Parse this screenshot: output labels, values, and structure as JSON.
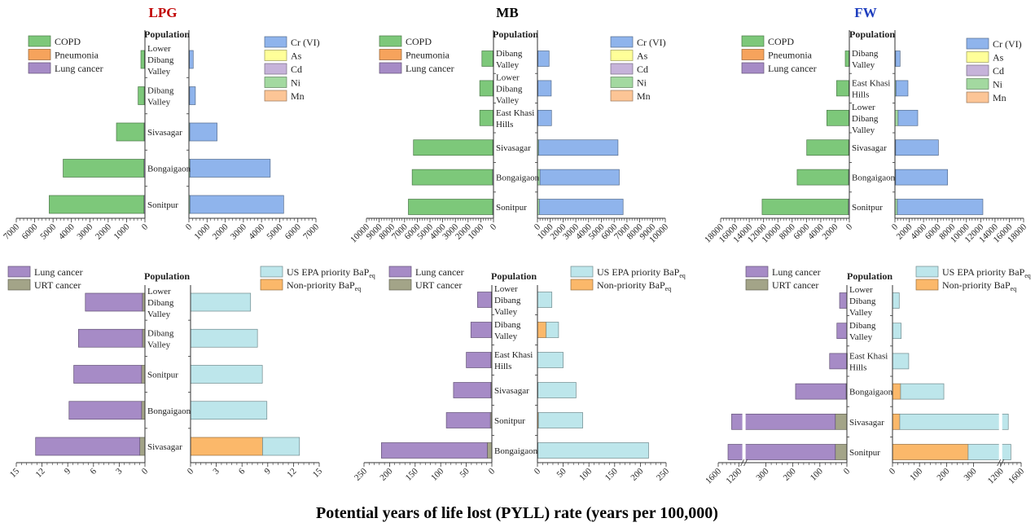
{
  "caption": "Potential years of life lost (PYLL) rate (years per 100,000)",
  "titles": [
    {
      "text": "LPG",
      "color": "#c00000"
    },
    {
      "text": "MB",
      "color": "#000000"
    },
    {
      "text": "FW",
      "color": "#1f3fbf"
    }
  ],
  "colors": {
    "COPD": "#7dc87a",
    "Pneumonia": "#f6a35c",
    "Lung cancer": "#a68bc6",
    "Cr (VI)": "#8fb4ec",
    "As": "#ffff99",
    "Cd": "#c6b3da",
    "Ni": "#a3d9a0",
    "Mn": "#fcc596",
    "URT cancer": "#a3a488",
    "US EPA priority BaPeq": "#bde6eb",
    "Non-priority BaPeq": "#fbb86a"
  },
  "chart_data": [
    {
      "type": "bar",
      "orientation": "horizontal-butterfly",
      "fuel": "LPG",
      "center_label": "Population",
      "categories": [
        "Lower Dibang Valley",
        "Dibang Valley",
        "Sivasagar",
        "Bongaigaon",
        "Sonitpur"
      ],
      "left": {
        "legend": [
          "COPD",
          "Pneumonia",
          "Lung cancer"
        ],
        "series": [
          {
            "name": "Lung cancer",
            "values": [
              30,
              40,
              50,
              60,
              60
            ]
          },
          {
            "name": "Pneumonia",
            "values": [
              0,
              0,
              0,
              0,
              0
            ]
          },
          {
            "name": "COPD",
            "values": [
              190,
              330,
              1500,
              4390,
              5150
            ]
          }
        ],
        "axis": {
          "max": 7000,
          "ticks": [
            0,
            1000,
            2000,
            3000,
            4000,
            5000,
            6000,
            7000
          ]
        }
      },
      "right": {
        "legend": [
          "Cr (VI)",
          "As",
          "Cd",
          "Ni",
          "Mn"
        ],
        "series": [
          {
            "name": "Ni",
            "values": [
              30,
              40,
              50,
              60,
              60
            ]
          },
          {
            "name": "As",
            "values": [
              0,
              0,
              0,
              0,
              0
            ]
          },
          {
            "name": "Cd",
            "values": [
              0,
              0,
              0,
              0,
              0
            ]
          },
          {
            "name": "Mn",
            "values": [
              0,
              0,
              0,
              0,
              0
            ]
          },
          {
            "name": "Cr (VI)",
            "values": [
              207,
              315,
              1500,
              4420,
              5160
            ]
          }
        ],
        "axis": {
          "max": 7000,
          "ticks": [
            0,
            1000,
            2000,
            3000,
            4000,
            5000,
            6000,
            7000
          ]
        }
      }
    },
    {
      "type": "bar",
      "orientation": "horizontal-butterfly",
      "fuel": "MB",
      "center_label": "Population",
      "categories": [
        "Dibang Valley",
        "Lower Dibang Valley",
        "East Khasi Hills",
        "Sivasagar",
        "Bongaigaon",
        "Sonitpur"
      ],
      "left": {
        "legend": [
          "COPD",
          "Pneumonia",
          "Lung cancer"
        ],
        "series": [
          {
            "name": "Lung cancer",
            "values": [
              40,
              40,
              40,
              60,
              80,
              70
            ]
          },
          {
            "name": "Pneumonia",
            "values": [
              0,
              0,
              0,
              0,
              0,
              0
            ]
          },
          {
            "name": "COPD",
            "values": [
              870,
              1040,
              1040,
              6240,
              6320,
              6630
            ]
          }
        ],
        "axis": {
          "max": 10000,
          "ticks": [
            0,
            1000,
            2000,
            3000,
            4000,
            5000,
            6000,
            7000,
            8000,
            9000,
            10000
          ]
        }
      },
      "right": {
        "legend": [
          "Cr (VI)",
          "As",
          "Cd",
          "Ni",
          "Mn"
        ],
        "series": [
          {
            "name": "Ni",
            "values": [
              40,
              40,
              40,
              100,
              200,
              150
            ]
          },
          {
            "name": "As",
            "values": [
              0,
              0,
              0,
              0,
              0,
              0
            ]
          },
          {
            "name": "Cd",
            "values": [
              0,
              0,
              0,
              0,
              0,
              0
            ]
          },
          {
            "name": "Mn",
            "values": [
              0,
              0,
              0,
              0,
              0,
              0
            ]
          },
          {
            "name": "Cr (VI)",
            "values": [
              870,
              1040,
              1060,
              6200,
              6200,
              6550
            ]
          }
        ],
        "axis": {
          "max": 10000,
          "ticks": [
            0,
            1000,
            2000,
            3000,
            4000,
            5000,
            6000,
            7000,
            8000,
            9000,
            10000
          ]
        }
      }
    },
    {
      "type": "bar",
      "orientation": "horizontal-butterfly",
      "fuel": "FW",
      "center_label": "Population",
      "categories": [
        "Dibang Valley",
        "East Khasi Hills",
        "Lower Dibang Valley",
        "Sivasagar",
        "Bongaigaon",
        "Sonitpur"
      ],
      "left": {
        "legend": [
          "COPD",
          "Pneumonia",
          "Lung cancer"
        ],
        "series": [
          {
            "name": "Lung cancer",
            "values": [
              50,
              80,
              80,
              100,
              120,
              150
            ]
          },
          {
            "name": "Pneumonia",
            "values": [
              0,
              0,
              0,
              0,
              0,
              0
            ]
          },
          {
            "name": "COPD",
            "values": [
              520,
              1700,
              3070,
              5860,
              7180,
              12050
            ]
          }
        ],
        "axis": {
          "max": 18000,
          "ticks": [
            0,
            2000,
            4000,
            6000,
            8000,
            10000,
            12000,
            14000,
            16000,
            18000
          ]
        }
      },
      "right": {
        "legend": [
          "Cr (VI)",
          "As",
          "Cd",
          "Ni",
          "Mn"
        ],
        "series": [
          {
            "name": "Ni",
            "values": [
              100,
              150,
              450,
              100,
              100,
              340
            ]
          },
          {
            "name": "As",
            "values": [
              0,
              0,
              0,
              0,
              0,
              0
            ]
          },
          {
            "name": "Cd",
            "values": [
              0,
              0,
              0,
              0,
              0,
              0
            ]
          },
          {
            "name": "Mn",
            "values": [
              0,
              0,
              0,
              0,
              0,
              0
            ]
          },
          {
            "name": "Cr (VI)",
            "values": [
              620,
              1670,
              2740,
              5980,
              7270,
              11960
            ]
          }
        ],
        "axis": {
          "max": 18000,
          "ticks": [
            0,
            2000,
            4000,
            6000,
            8000,
            10000,
            12000,
            14000,
            16000,
            18000
          ]
        }
      }
    },
    {
      "type": "bar",
      "orientation": "horizontal-butterfly",
      "fuel": "LPG",
      "center_label": "Population",
      "categories": [
        "Lower Dibang Valley",
        "Dibang Valley",
        "Sonitpur",
        "Bongaigaon",
        "Sivasagar"
      ],
      "left": {
        "legend": [
          "Lung cancer",
          "URT cancer"
        ],
        "series": [
          {
            "name": "URT cancer",
            "values": [
              0.3,
              0.3,
              0.4,
              0.4,
              0.6
            ]
          },
          {
            "name": "Lung cancer",
            "values": [
              6.65,
              7.45,
              7.9,
              8.45,
              12.15
            ]
          }
        ],
        "axis": {
          "max": 15,
          "ticks": [
            0,
            3,
            6,
            9,
            12,
            15
          ]
        }
      },
      "right": {
        "legend": [
          "US EPA priority BaPeq",
          "Non-priority BaPeq"
        ],
        "series": [
          {
            "name": "Non-priority BaPeq",
            "values": [
              0,
              0,
              0,
              0,
              8.4
            ]
          },
          {
            "name": "US EPA priority BaPeq",
            "values": [
              7.0,
              7.8,
              8.37,
              8.9,
              4.3
            ]
          }
        ],
        "axis": {
          "max": 15,
          "ticks": [
            0,
            3,
            6,
            9,
            12,
            15
          ]
        }
      }
    },
    {
      "type": "bar",
      "orientation": "horizontal-butterfly",
      "fuel": "MB",
      "center_label": "Population",
      "categories": [
        "Lower Dibang Valley",
        "Dibang Valley",
        "East Khasi Hills",
        "Sivasagar",
        "Sonitpur",
        "Bongaigaon"
      ],
      "left": {
        "legend": [
          "Lung cancer",
          "URT cancer"
        ],
        "series": [
          {
            "name": "URT cancer",
            "values": [
              1,
              1,
              2,
              2,
              3,
              9
            ]
          },
          {
            "name": "Lung cancer",
            "values": [
              27,
              40,
              48,
              73,
              86,
              207
            ]
          }
        ],
        "axis": {
          "max": 250,
          "ticks": [
            0,
            50,
            100,
            150,
            200,
            250
          ]
        }
      },
      "right": {
        "legend": [
          "US EPA priority BaPeq",
          "Non-priority BaPeq"
        ],
        "series": [
          {
            "name": "Non-priority BaPeq",
            "values": [
              0,
              17,
              0,
              1,
              2,
              1
            ]
          },
          {
            "name": "US EPA priority BaPeq",
            "values": [
              28,
              24,
              50,
              74,
              86,
              215
            ]
          }
        ],
        "axis": {
          "max": 250,
          "ticks": [
            0,
            50,
            100,
            150,
            200,
            250
          ]
        }
      }
    },
    {
      "type": "bar",
      "orientation": "horizontal-butterfly",
      "fuel": "FW",
      "center_label": "Population",
      "categories": [
        "Lower Dibang Valley",
        "Dibang Valley",
        "East Khasi Hills",
        "Bongaigaon",
        "Sivasagar",
        "Sonitpur"
      ],
      "left": {
        "legend": [
          "Lung cancer",
          "URT cancer"
        ],
        "series": [
          {
            "name": "URT cancer",
            "values": [
              0,
              0,
              1,
              3,
              43,
              43
            ]
          },
          {
            "name": "Lung cancer",
            "values": [
              27,
              37,
              63,
              187,
              1297,
              1367
            ]
          }
        ],
        "axis": {
          "max": 1600,
          "ticks": [
            0,
            100,
            200,
            300,
            1200,
            1600
          ],
          "break": [
            300,
            1200
          ]
        }
      },
      "right": {
        "legend": [
          "US EPA priority BaPeq",
          "Non-priority BaPeq"
        ],
        "series": [
          {
            "name": "Non-priority BaPeq",
            "values": [
              0,
              0,
              0,
              30,
              27,
              280
            ]
          },
          {
            "name": "US EPA priority BaPeq",
            "values": [
              25,
              32,
              60,
              160,
              1323,
              1120
            ]
          }
        ],
        "axis": {
          "max": 1600,
          "ticks": [
            0,
            100,
            200,
            300,
            1200,
            1600
          ],
          "break": [
            300,
            1200
          ]
        }
      }
    }
  ]
}
